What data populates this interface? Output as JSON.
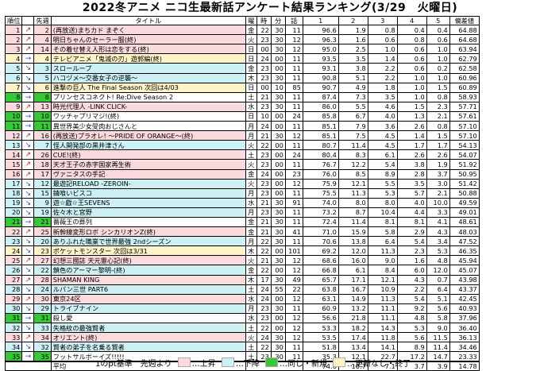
{
  "title": "2022冬アニメ ニコ生最新話アンケート結果ランキング(3/29　火曜日)",
  "headers": [
    "順位",
    "",
    "先週",
    "タイトル",
    "曜",
    "時",
    "分",
    "話",
    "1",
    "2",
    "3",
    "4",
    "5",
    "偏差値"
  ],
  "colors": {
    "up": "#fadadd",
    "down": "#ccf0f4",
    "same_new": "#35c935",
    "noupdate": "#fff3c8"
  },
  "rows": [
    {
      "rank": "1",
      "arrow": "up",
      "prev": "2",
      "title": "(再放送)まちカド まぞく",
      "day": "金",
      "h": "22",
      "m": "30",
      "ep": "11",
      "p1": "96.6",
      "p2": "1.9",
      "p3": "0.8",
      "p4": "0.4",
      "p5": "0.4",
      "dev": "64.88",
      "type": "up"
    },
    {
      "rank": "2",
      "arrow": "up",
      "prev": "4",
      "title": "明日ちゃんのセーラー服(終)",
      "day": "火",
      "h": "23",
      "m": "30",
      "ep": "12",
      "p1": "96.3",
      "p2": "1.6",
      "p3": "0.6",
      "p4": "0.8",
      "p5": "0.6",
      "dev": "64.68",
      "type": "up"
    },
    {
      "rank": "3",
      "arrow": "up",
      "prev": "14",
      "title": "その着せ替え人形は恋をする(終)",
      "day": "日",
      "h": "00",
      "m": "30",
      "ep": "12",
      "p1": "95.0",
      "p2": "2.5",
      "p3": "1.0",
      "p4": "0.6",
      "p5": "1.0",
      "dev": "63.94",
      "type": "up"
    },
    {
      "rank": "4",
      "arrow": "same",
      "prev": "4",
      "title": "テレビアニメ「鬼滅の刃」遊郭編(終)",
      "day": "日",
      "h": "24",
      "m": "00",
      "ep": "11",
      "p1": "93.5",
      "p2": "3.5",
      "p3": "1.4",
      "p4": "0.6",
      "p5": "1.0",
      "dev": "62.79",
      "type": "noupd"
    },
    {
      "rank": "5",
      "arrow": "down",
      "prev": "3",
      "title": "スローループ",
      "day": "金",
      "h": "23",
      "m": "00",
      "ep": "11",
      "p1": "93.1",
      "p2": "3.8",
      "p3": "2.2",
      "p4": "0.6",
      "p5": "0.2",
      "dev": "62.58",
      "type": "down"
    },
    {
      "rank": "6",
      "arrow": "down",
      "prev": "5",
      "title": "ハコヅメ～交番女子の逆襲～",
      "day": "木",
      "h": "23",
      "m": "30",
      "ep": "11",
      "p1": "90.8",
      "p2": "5.1",
      "p3": "2.2",
      "p4": "1.0",
      "p5": "1.0",
      "dev": "60.96",
      "type": "down"
    },
    {
      "rank": "7",
      "arrow": "down",
      "prev": "6",
      "title": "進撃の巨人 The Final Season 次回は4/03",
      "day": "日",
      "h": "00",
      "m": "10",
      "ep": "85",
      "p1": "90.7",
      "p2": "4.9",
      "p3": "1.8",
      "p4": "1.0",
      "p5": "1.5",
      "dev": "60.89",
      "type": "noupd"
    },
    {
      "rank": "8",
      "arrow": "same",
      "prev": "8",
      "title": "プリンセスコネクト! Re:Dive Season 2",
      "day": "土",
      "h": "21",
      "m": "30",
      "ep": "11",
      "p1": "87.4",
      "p2": "7.3",
      "p3": "3.5",
      "p4": "1.0",
      "p5": "0.8",
      "dev": "58.93",
      "type": "same"
    },
    {
      "rank": "9",
      "arrow": "up",
      "prev": "13",
      "title": "時光代理人 -LINK CLICK-",
      "day": "水",
      "h": "23",
      "m": "30",
      "ep": "11",
      "p1": "86.0",
      "p2": "5.5",
      "p3": "4.6",
      "p4": "1.5",
      "p5": "2.3",
      "dev": "57.71",
      "type": "up"
    },
    {
      "rank": "10",
      "arrow": "same",
      "prev": "10",
      "title": "ワッチャプリマジ!(終)",
      "day": "日",
      "h": "10",
      "m": "00",
      "ep": "24",
      "p1": "85.8",
      "p2": "6.7",
      "p3": "4.0",
      "p4": "1.3",
      "p5": "2.1",
      "dev": "57.61",
      "type": "same"
    },
    {
      "rank": "11",
      "arrow": "same",
      "prev": "11",
      "title": "異世界美少女受肉おじさんと",
      "day": "月",
      "h": "24",
      "m": "00",
      "ep": "11",
      "p1": "85.1",
      "p2": "7.9",
      "p3": "3.6",
      "p4": "2.6",
      "p5": "0.8",
      "dev": "57.10",
      "type": "same"
    },
    {
      "rank": "12",
      "arrow": "up",
      "prev": "16",
      "title": "(再放送)プラオレ! ～PRIDE OF ORANGE～(終)",
      "day": "月",
      "h": "21",
      "m": "30",
      "ep": "12",
      "p1": "85.1",
      "p2": "7.5",
      "p3": "4.5",
      "p4": "1.4",
      "p5": "1.5",
      "dev": "57.10",
      "type": "up"
    },
    {
      "rank": "13",
      "arrow": "down",
      "prev": "7",
      "title": "怪人開発部の黒井津さん",
      "day": "火",
      "h": "22",
      "m": "00",
      "ep": "11",
      "p1": "80.7",
      "p2": "11.4",
      "p3": "4.5",
      "p4": "1.7",
      "p5": "1.7",
      "dev": "54.13",
      "type": "down"
    },
    {
      "rank": "14",
      "arrow": "up",
      "prev": "26",
      "title": "CUE!(終)",
      "day": "土",
      "h": "23",
      "m": "00",
      "ep": "24",
      "p1": "80.4",
      "p2": "8.3",
      "p3": "6.1",
      "p4": "2.6",
      "p5": "2.6",
      "dev": "54.07",
      "type": "up"
    },
    {
      "rank": "15",
      "arrow": "up",
      "prev": "18",
      "title": "天才王子の赤字国家再生術",
      "day": "火",
      "h": "23",
      "m": "00",
      "ep": "11",
      "p1": "76.7",
      "p2": "12.2",
      "p3": "5.4",
      "p4": "3.8",
      "p5": "1.9",
      "dev": "51.92",
      "type": "up"
    },
    {
      "rank": "16",
      "arrow": "up",
      "prev": "17",
      "title": "ヴァニタスの手記",
      "day": "金",
      "h": "24",
      "m": "00",
      "ep": "23",
      "p1": "76.0",
      "p2": "8.5",
      "p3": "8.9",
      "p4": "2.8",
      "p5": "3.7",
      "dev": "50.95",
      "type": "up"
    },
    {
      "rank": "17",
      "arrow": "down",
      "prev": "12",
      "title": "最遊記RELOAD -ZEROIN-",
      "day": "火",
      "h": "23",
      "m": "00",
      "ep": "12",
      "p1": "75.9",
      "p2": "12.1",
      "p3": "5.5",
      "p4": "3.5",
      "p5": "3.0",
      "dev": "51.42",
      "type": "down"
    },
    {
      "rank": "18",
      "arrow": "down",
      "prev": "15",
      "title": "錆喰いビスコ",
      "day": "月",
      "h": "23",
      "m": "00",
      "ep": "11",
      "p1": "75.5",
      "p2": "11.3",
      "p3": "5.3",
      "p4": "5.7",
      "p5": "2.1",
      "dev": "50.88",
      "type": "down"
    },
    {
      "rank": "19",
      "arrow": "down",
      "prev": "9",
      "title": "遊☆戯☆王SEVENS",
      "day": "水",
      "h": "21",
      "m": "30",
      "ep": "91",
      "p1": "74.0",
      "p2": "8.0",
      "p3": "8.0",
      "p4": "4.0",
      "p5": "10.0",
      "dev": "49.59",
      "type": "down"
    },
    {
      "rank": "20",
      "arrow": "down",
      "prev": "19",
      "title": "佐々木と宮野",
      "day": "月",
      "h": "23",
      "m": "30",
      "ep": "11",
      "p1": "73.2",
      "p2": "8.7",
      "p3": "10.4",
      "p4": "4.4",
      "p5": "3.3",
      "dev": "49.01",
      "type": "down"
    },
    {
      "rank": "21",
      "arrow": "same",
      "prev": "21",
      "title": "薔薇王の葬列",
      "day": "金",
      "h": "21",
      "m": "30",
      "ep": "11",
      "p1": "72.4",
      "p2": "11.4",
      "p3": "8.1",
      "p4": "8.1",
      "p5": "4.1",
      "dev": "48.61",
      "type": "same"
    },
    {
      "rank": "22",
      "arrow": "up",
      "prev": "25",
      "title": "新幹線変形ロボ シンカリオンZ(終)",
      "day": "金",
      "h": "21",
      "m": "30",
      "ep": "41",
      "p1": "71.0",
      "p2": "15.9",
      "p3": "5.8",
      "p4": "2.9",
      "p5": "4.3",
      "dev": "48.03",
      "type": "up"
    },
    {
      "rank": "23",
      "arrow": "down",
      "prev": "20",
      "title": "ありふれた職業で世界最強 2ndシーズン",
      "day": "月",
      "h": "22",
      "m": "30",
      "ep": "11",
      "p1": "70.6",
      "p2": "13.8",
      "p3": "6.4",
      "p4": "5.4",
      "p5": "3.4",
      "dev": "47.52",
      "type": "down"
    },
    {
      "rank": "24",
      "arrow": "down",
      "prev": "23",
      "title": "ポケットモンスター 次回は3/31",
      "day": "木",
      "h": "22",
      "m": "00",
      "ep": "101",
      "p1": "69.2",
      "p2": "12.0",
      "p3": "11.3",
      "p4": "2.3",
      "p5": "5.3",
      "dev": "46.35",
      "type": "noupd"
    },
    {
      "rank": "25",
      "arrow": "up",
      "prev": "27",
      "title": "幻想三國誌 天元靈心記(終)",
      "day": "火",
      "h": "21",
      "m": "30",
      "ep": "12",
      "p1": "68.6",
      "p2": "16.0",
      "p3": "9.0",
      "p4": "1.6",
      "p5": "4.8",
      "dev": "45.94",
      "type": "up"
    },
    {
      "rank": "26",
      "arrow": "down",
      "prev": "22",
      "title": "鎖色のアーマー黎明-(終)",
      "day": "金",
      "h": "22",
      "m": "00",
      "ep": "12",
      "p1": "66.8",
      "p2": "6.1",
      "p3": "8.4",
      "p4": "6.0",
      "p5": "12.0",
      "dev": "45.07",
      "type": "down"
    },
    {
      "rank": "27",
      "arrow": "up",
      "prev": "28",
      "title": "SHAMAN KING",
      "day": "木",
      "h": "17",
      "m": "30",
      "ep": "49",
      "p1": "65.7",
      "p2": "17.1",
      "p3": "12.1",
      "p4": "4.3",
      "p5": "0.7",
      "dev": "43.98",
      "type": "up"
    },
    {
      "rank": "28",
      "arrow": "down",
      "prev": "24",
      "title": "ルパン三世 PART6",
      "day": "土",
      "h": "24",
      "m": "55",
      "ep": "22",
      "p1": "63.8",
      "p2": "16.7",
      "p3": "10.9",
      "p4": "2.2",
      "p5": "6.4",
      "dev": "43.37",
      "type": "down"
    },
    {
      "rank": "29",
      "arrow": "up",
      "prev": "30",
      "title": "東京24区",
      "day": "水",
      "h": "24",
      "m": "00",
      "ep": "12",
      "p1": "63.1",
      "p2": "14.9",
      "p3": "11.3",
      "p4": "5.4",
      "p5": "5.1",
      "dev": "42.45",
      "type": "up"
    },
    {
      "rank": "30",
      "arrow": "down",
      "prev": "29",
      "title": "トライブナイン",
      "day": "月",
      "h": "23",
      "m": "30",
      "ep": "11",
      "p1": "60.9",
      "p2": "13.2",
      "p3": "11.1",
      "p4": "9.2",
      "p5": "5.6",
      "dev": "40.93",
      "type": "down"
    },
    {
      "rank": "31",
      "arrow": "same",
      "prev": "31",
      "title": "殺し愛",
      "day": "水",
      "h": "23",
      "m": "00",
      "ep": "12",
      "p1": "56.6",
      "p2": "21.8",
      "p3": "11.1",
      "p4": "4.8",
      "p5": "5.8",
      "dev": "37.96",
      "type": "same"
    },
    {
      "rank": "32",
      "arrow": "down",
      "prev": "33",
      "title": "失格紋の最強賢者",
      "day": "土",
      "h": "22",
      "m": "00",
      "ep": "12",
      "p1": "53.3",
      "p2": "18.2",
      "p3": "14.3",
      "p4": "5.3",
      "p5": "9.0",
      "dev": "36.40",
      "type": "down"
    },
    {
      "rank": "33",
      "arrow": "up",
      "prev": "34",
      "title": "オリエント(終)",
      "day": "火",
      "h": "24",
      "m": "30",
      "ep": "12",
      "p1": "53.5",
      "p2": "17.4",
      "p3": "11.8",
      "p4": "5.6",
      "p5": "11.5",
      "dev": "36.13",
      "type": "up"
    },
    {
      "rank": "34",
      "arrow": "down",
      "prev": "32",
      "title": "賢者の弟子を名乗る賢者",
      "day": "土",
      "h": "22",
      "m": "30",
      "ep": "11",
      "p1": "51.8",
      "p2": "13.4",
      "p3": "14.1",
      "p4": "8.9",
      "p5": "11.4",
      "dev": "34.46",
      "type": "down"
    },
    {
      "rank": "35",
      "arrow": "same",
      "prev": "35",
      "title": "フットサルボーイズ!!!!!",
      "day": "土",
      "h": "23",
      "m": "30",
      "ep": "11",
      "p1": "35.3",
      "p2": "12.1",
      "p3": "22.7",
      "p4": "17.2",
      "p5": "14.7",
      "dev": "23.33",
      "type": "same"
    }
  ],
  "average": {
    "label": "平均",
    "p1": "74.6",
    "p2": "10.7",
    "p3": "7.1",
    "p4": "3.7",
    "p5": "3.9",
    "dev": "14.78"
  },
  "legend": {
    "basis": "1のpt基準　先週より",
    "up": "…上昇",
    "down": "…下降",
    "same": "…同じ・新規",
    "noupd": "…更新なし・終了"
  }
}
